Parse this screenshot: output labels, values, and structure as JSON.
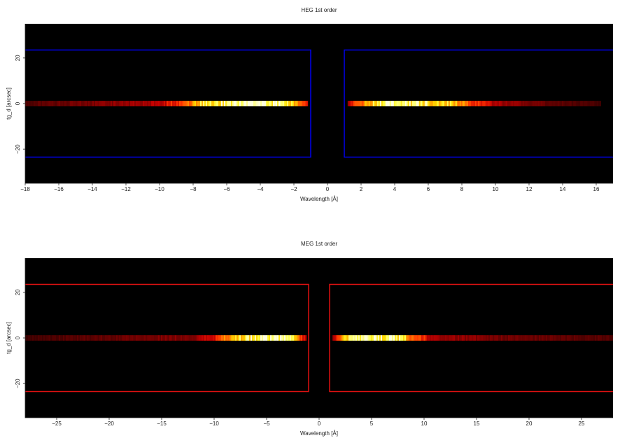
{
  "chart_data": [
    {
      "type": "heatmap",
      "title": "HEG 1st order",
      "xlabel": "Wavelength [Å]",
      "ylabel": "tg_d [arcsec]",
      "xlim": [
        -18,
        17
      ],
      "ylim": [
        -35,
        35
      ],
      "xticks": [
        -18,
        -16,
        -14,
        -12,
        -10,
        -8,
        -6,
        -4,
        -2,
        0,
        2,
        4,
        6,
        8,
        10,
        12,
        14,
        16
      ],
      "yticks": [
        -20,
        0,
        20
      ],
      "region_color": "#0000ee",
      "regions": [
        {
          "x": [
            -19,
            -1
          ],
          "y": [
            -23.5,
            23.5
          ]
        },
        {
          "x": [
            1,
            18
          ],
          "y": [
            -23.5,
            23.5
          ]
        }
      ],
      "streak": {
        "y": 0,
        "half_width": 1.2,
        "segments": [
          {
            "x": [
              -18,
              -1.2
            ],
            "profile": [
              [
                -18,
                0.15
              ],
              [
                -14,
                0.22
              ],
              [
                -10,
                0.32
              ],
              [
                -8.5,
                0.55
              ],
              [
                -7.5,
                0.82
              ],
              [
                -6,
                0.97
              ],
              [
                -4,
                1.0
              ],
              [
                -2.5,
                0.9
              ],
              [
                -1.8,
                0.6
              ],
              [
                -1.2,
                0.35
              ]
            ]
          },
          {
            "x": [
              1.2,
              16.2
            ],
            "profile": [
              [
                1.2,
                0.3
              ],
              [
                2,
                0.6
              ],
              [
                3,
                0.92
              ],
              [
                4,
                1.0
              ],
              [
                5,
                0.9
              ],
              [
                6.5,
                0.8
              ],
              [
                7.5,
                0.75
              ],
              [
                8.5,
                0.5
              ],
              [
                10,
                0.3
              ],
              [
                13,
                0.18
              ],
              [
                16.2,
                0.12
              ]
            ]
          }
        ]
      }
    },
    {
      "type": "heatmap",
      "title": "MEG 1st order",
      "xlabel": "Wavelength [Å]",
      "ylabel": "tg_d [arcsec]",
      "xlim": [
        -28,
        28
      ],
      "ylim": [
        -35,
        35
      ],
      "xticks": [
        -25,
        -20,
        -15,
        -10,
        -5,
        0,
        5,
        10,
        15,
        20,
        25
      ],
      "yticks": [
        -20,
        0,
        20
      ],
      "region_color": "#dd1111",
      "regions": [
        {
          "x": [
            -29,
            -1
          ],
          "y": [
            -23.5,
            23.5
          ]
        },
        {
          "x": [
            1,
            29
          ],
          "y": [
            -23.5,
            23.5
          ]
        }
      ],
      "streak": {
        "y": 0,
        "half_width": 1.2,
        "segments": [
          {
            "x": [
              -28,
              -1.2
            ],
            "profile": [
              [
                -28,
                0.12
              ],
              [
                -20,
                0.18
              ],
              [
                -12,
                0.25
              ],
              [
                -10,
                0.4
              ],
              [
                -8,
                0.8
              ],
              [
                -5,
                0.97
              ],
              [
                -3.5,
                1.0
              ],
              [
                -2.5,
                0.75
              ],
              [
                -1.2,
                0.3
              ]
            ]
          },
          {
            "x": [
              1.2,
              28
            ],
            "profile": [
              [
                1.2,
                0.2
              ],
              [
                2,
                0.6
              ],
              [
                3,
                0.9
              ],
              [
                5,
                1.0
              ],
              [
                7.5,
                0.9
              ],
              [
                9,
                0.55
              ],
              [
                11,
                0.3
              ],
              [
                18,
                0.2
              ],
              [
                28,
                0.15
              ]
            ]
          }
        ]
      }
    }
  ]
}
